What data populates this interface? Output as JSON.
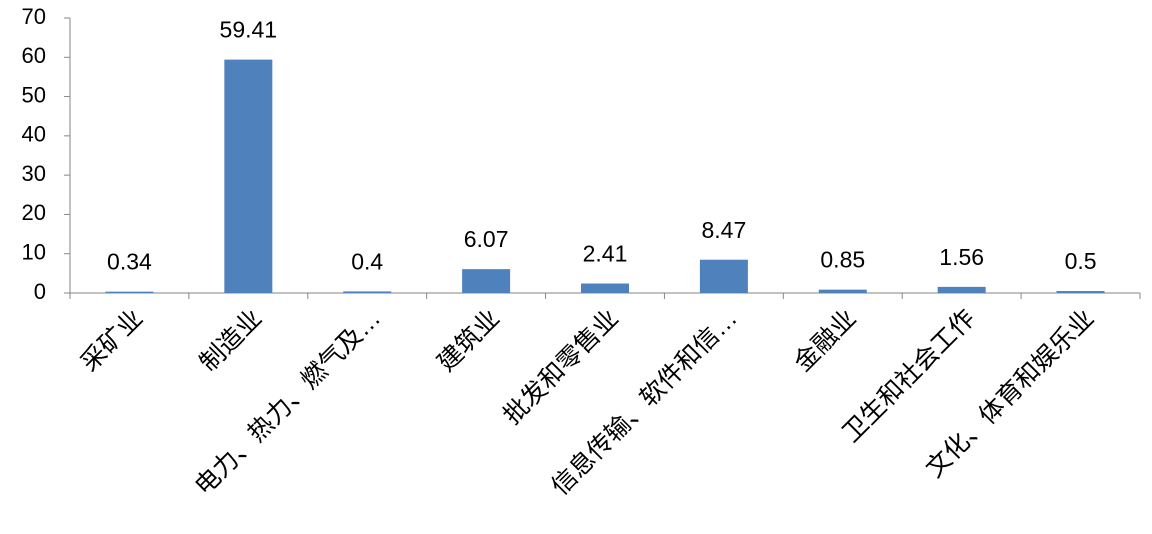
{
  "chart_data": {
    "type": "bar",
    "categories": [
      "采矿业",
      "制造业",
      "电力、热力、燃气及…",
      "建筑业",
      "批发和零售业",
      "信息传输、软件和信…",
      "金融业",
      "卫生和社会工作",
      "文化、体育和娱乐业"
    ],
    "values": [
      0.34,
      59.41,
      0.4,
      6.07,
      2.41,
      8.47,
      0.85,
      1.56,
      0.5
    ],
    "color": "#4f81bd",
    "ylim": [
      0,
      70
    ],
    "yticks": [
      0,
      10,
      20,
      30,
      40,
      50,
      60,
      70
    ],
    "grid": false
  }
}
